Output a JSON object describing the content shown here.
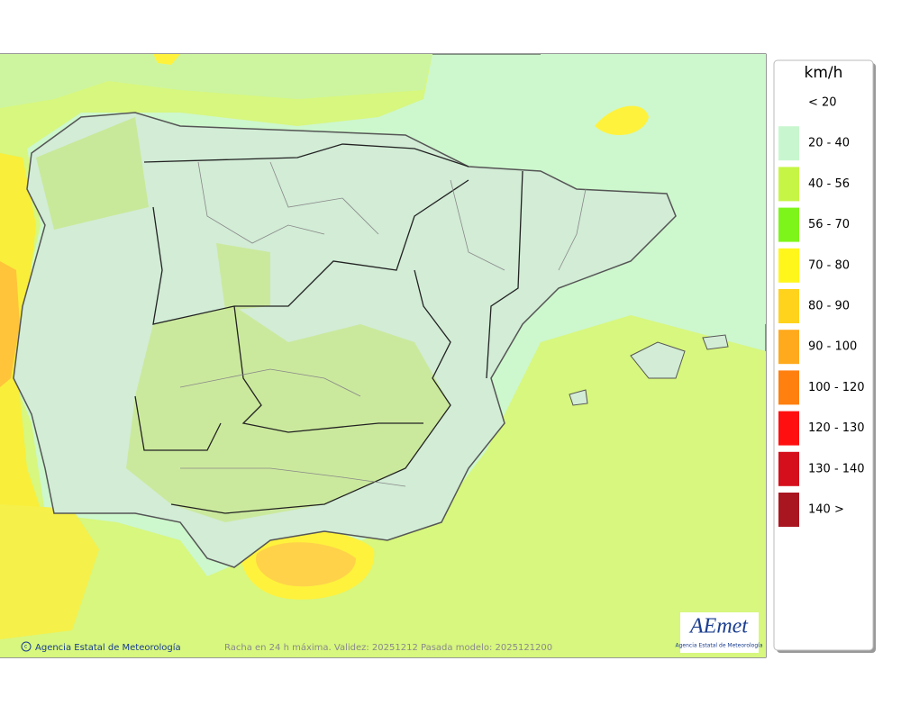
{
  "legend": {
    "unit": "km/h",
    "items": [
      {
        "label": "< 20",
        "color": "#ffffff"
      },
      {
        "label": "20 - 40",
        "color": "#c8f7cf"
      },
      {
        "label": "40 - 56",
        "color": "#c6f546"
      },
      {
        "label": "56 - 70",
        "color": "#7ef51a"
      },
      {
        "label": "70 - 80",
        "color": "#fff71c"
      },
      {
        "label": "80 - 90",
        "color": "#ffd21c"
      },
      {
        "label": "90 - 100",
        "color": "#ffaa1c"
      },
      {
        "label": "100 - 120",
        "color": "#ff7f0f"
      },
      {
        "label": "120 - 130",
        "color": "#ff0f0f"
      },
      {
        "label": "130 - 140",
        "color": "#d60f1c"
      },
      {
        "label": "140 >",
        "color": "#aa1620"
      }
    ]
  },
  "footer": {
    "credit": "Agencia Estatal de Meteorología",
    "caption": "Racha en 24 h máxima. Validez: 20251212 Pasada modelo: 2025121200"
  },
  "logo": {
    "brand": "AEmet",
    "subtitle": "Agencia Estatal de Meteorología"
  }
}
